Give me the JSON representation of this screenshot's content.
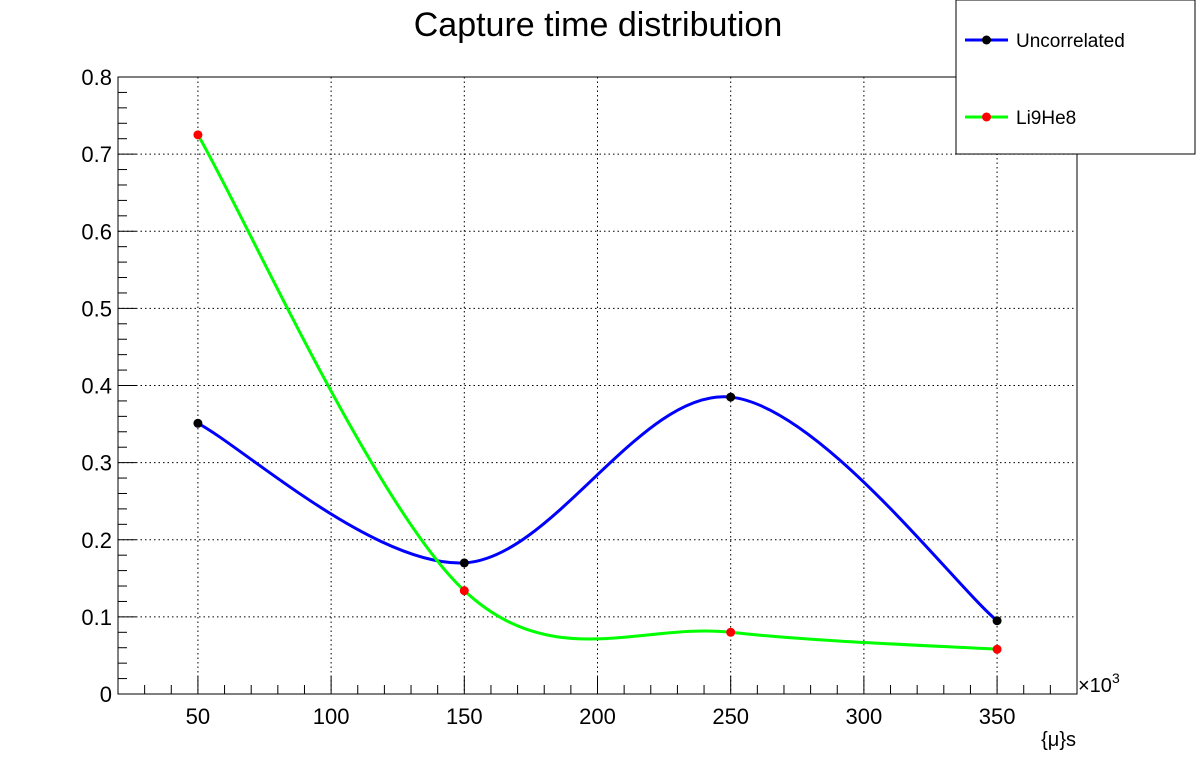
{
  "chart_data": {
    "type": "line",
    "title": "Capture time distribution",
    "xlabel": "{μ}s",
    "ylabel": "",
    "x_exponent_label": "×10",
    "x_exponent_power": "3",
    "xlim": [
      20,
      380
    ],
    "ylim": [
      0,
      0.8
    ],
    "x_ticks": [
      50,
      100,
      150,
      200,
      250,
      300,
      350
    ],
    "x_tick_labels": [
      "50",
      "100",
      "150",
      "200",
      "250",
      "300",
      "350"
    ],
    "y_ticks": [
      0,
      0.1,
      0.2,
      0.3,
      0.4,
      0.5,
      0.6,
      0.7,
      0.8
    ],
    "y_tick_labels": [
      "0",
      "0.1",
      "0.2",
      "0.3",
      "0.4",
      "0.5",
      "0.6",
      "0.7",
      "0.8"
    ],
    "grid": true,
    "legend_position": "top-right",
    "x": [
      50,
      150,
      250,
      350
    ],
    "series": [
      {
        "name": "Uncorrelated",
        "values": [
          0.351,
          0.17,
          0.385,
          0.095
        ],
        "line_color": "#0000ff",
        "marker_color": "#000000"
      },
      {
        "name": "Li9He8",
        "values": [
          0.725,
          0.134,
          0.08,
          0.058
        ],
        "line_color": "#00ff00",
        "marker_color": "#ff0000"
      }
    ]
  }
}
